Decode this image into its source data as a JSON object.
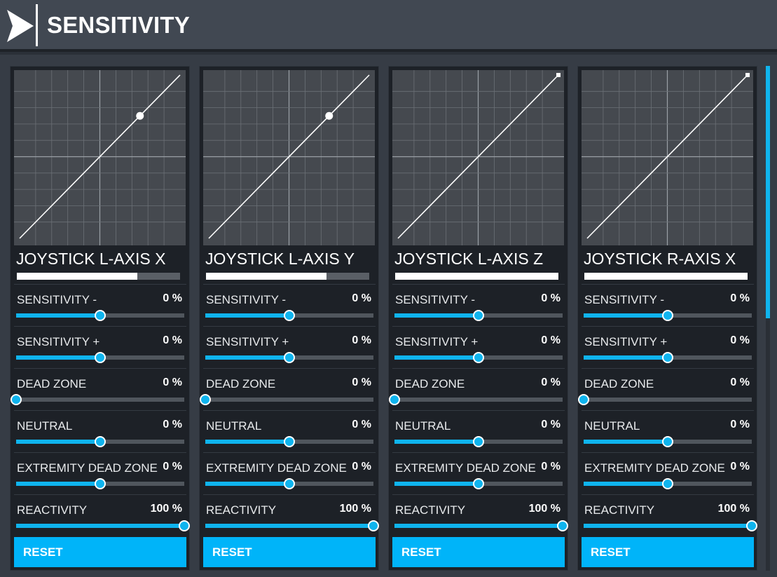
{
  "header": {
    "title": "SENSITIVITY",
    "back_icon": "chevron-right-icon"
  },
  "colors": {
    "accent": "#00b4f9",
    "header_bg": "#414852",
    "panel_bg": "#1d2127"
  },
  "panels": [
    {
      "axis_name": "JOYSTICK L-AXIS X",
      "axis_bar_fraction": 0.74,
      "curve_point": {
        "input": 0.75,
        "output": 0.75
      },
      "settings": [
        {
          "label": "SENSITIVITY -",
          "value": "0 %",
          "position": 0.5
        },
        {
          "label": "SENSITIVITY +",
          "value": "0 %",
          "position": 0.5
        },
        {
          "label": "DEAD ZONE",
          "value": "0 %",
          "position": 0.0
        },
        {
          "label": "NEUTRAL",
          "value": "0 %",
          "position": 0.5
        },
        {
          "label": "EXTREMITY DEAD ZONE",
          "value": "0 %",
          "position": 0.5
        },
        {
          "label": "REACTIVITY",
          "value": "100 %",
          "position": 1.0
        }
      ],
      "reset_label": "RESET"
    },
    {
      "axis_name": "JOYSTICK L-AXIS Y",
      "axis_bar_fraction": 0.74,
      "curve_point": {
        "input": 0.75,
        "output": 0.75
      },
      "settings": [
        {
          "label": "SENSITIVITY -",
          "value": "0 %",
          "position": 0.5
        },
        {
          "label": "SENSITIVITY +",
          "value": "0 %",
          "position": 0.5
        },
        {
          "label": "DEAD ZONE",
          "value": "0 %",
          "position": 0.0
        },
        {
          "label": "NEUTRAL",
          "value": "0 %",
          "position": 0.5
        },
        {
          "label": "EXTREMITY DEAD ZONE",
          "value": "0 %",
          "position": 0.5
        },
        {
          "label": "REACTIVITY",
          "value": "100 %",
          "position": 1.0
        }
      ],
      "reset_label": "RESET"
    },
    {
      "axis_name": "JOYSTICK L-AXIS Z",
      "axis_bar_fraction": 1.0,
      "curve_point": {
        "input": 1.0,
        "output": 1.0
      },
      "settings": [
        {
          "label": "SENSITIVITY -",
          "value": "0 %",
          "position": 0.5
        },
        {
          "label": "SENSITIVITY +",
          "value": "0 %",
          "position": 0.5
        },
        {
          "label": "DEAD ZONE",
          "value": "0 %",
          "position": 0.0
        },
        {
          "label": "NEUTRAL",
          "value": "0 %",
          "position": 0.5
        },
        {
          "label": "EXTREMITY DEAD ZONE",
          "value": "0 %",
          "position": 0.5
        },
        {
          "label": "REACTIVITY",
          "value": "100 %",
          "position": 1.0
        }
      ],
      "reset_label": "RESET"
    },
    {
      "axis_name": "JOYSTICK R-AXIS X",
      "axis_bar_fraction": 1.0,
      "curve_point": {
        "input": 1.0,
        "output": 1.0
      },
      "settings": [
        {
          "label": "SENSITIVITY -",
          "value": "0 %",
          "position": 0.5
        },
        {
          "label": "SENSITIVITY +",
          "value": "0 %",
          "position": 0.5
        },
        {
          "label": "DEAD ZONE",
          "value": "0 %",
          "position": 0.0
        },
        {
          "label": "NEUTRAL",
          "value": "0 %",
          "position": 0.5
        },
        {
          "label": "EXTREMITY DEAD ZONE",
          "value": "0 %",
          "position": 0.5
        },
        {
          "label": "REACTIVITY",
          "value": "100 %",
          "position": 1.0
        }
      ],
      "reset_label": "RESET"
    }
  ],
  "scrollbar": {
    "visible_fraction": 0.5
  }
}
